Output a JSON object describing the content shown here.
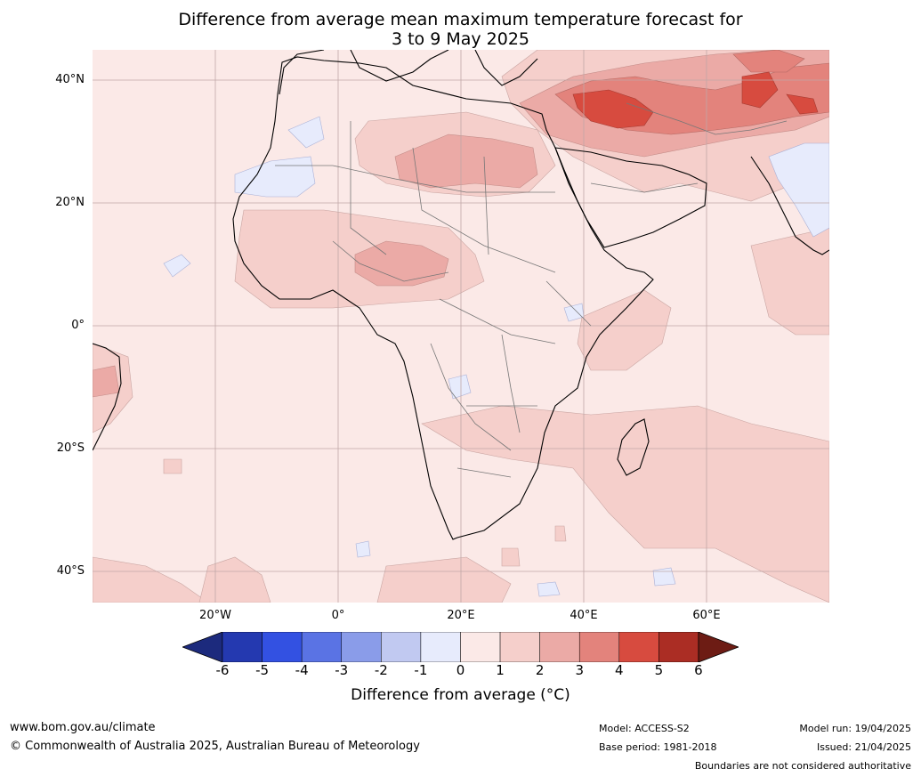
{
  "title": {
    "line1": "Difference from average mean maximum temperature forecast for",
    "line2": "3 to 9 May 2025"
  },
  "latitude_labels": [
    "40°N",
    "20°N",
    "0°",
    "20°S",
    "40°S"
  ],
  "longitude_labels": [
    "20°W",
    "0°",
    "20°E",
    "40°E",
    "60°E"
  ],
  "colorbar": {
    "ticks": [
      "-6",
      "-5",
      "-4",
      "-3",
      "-2",
      "-1",
      "0",
      "1",
      "2",
      "3",
      "4",
      "5",
      "6"
    ],
    "colors": [
      "#1c2a7d",
      "#2439b0",
      "#3351e2",
      "#5a73e4",
      "#8a9ce9",
      "#c1c9f1",
      "#e7ebfc",
      "#fbe9e7",
      "#f5cfcb",
      "#ebaaa6",
      "#e3837c",
      "#d74b3f",
      "#ab2d24",
      "#6d1c14"
    ],
    "label": "Difference from average (°C)"
  },
  "footer": {
    "url": "www.bom.gov.au/climate",
    "copyright": "© Commonwealth of Australia 2025, Australian Bureau of Meteorology",
    "model": "Model: ACCESS-S2",
    "base_period": "Base period: 1981-2018",
    "model_run": "Model run: 19/04/2025",
    "issued": "Issued: 21/04/2025",
    "disclaimer": "Boundaries are not considered authoritative"
  }
}
